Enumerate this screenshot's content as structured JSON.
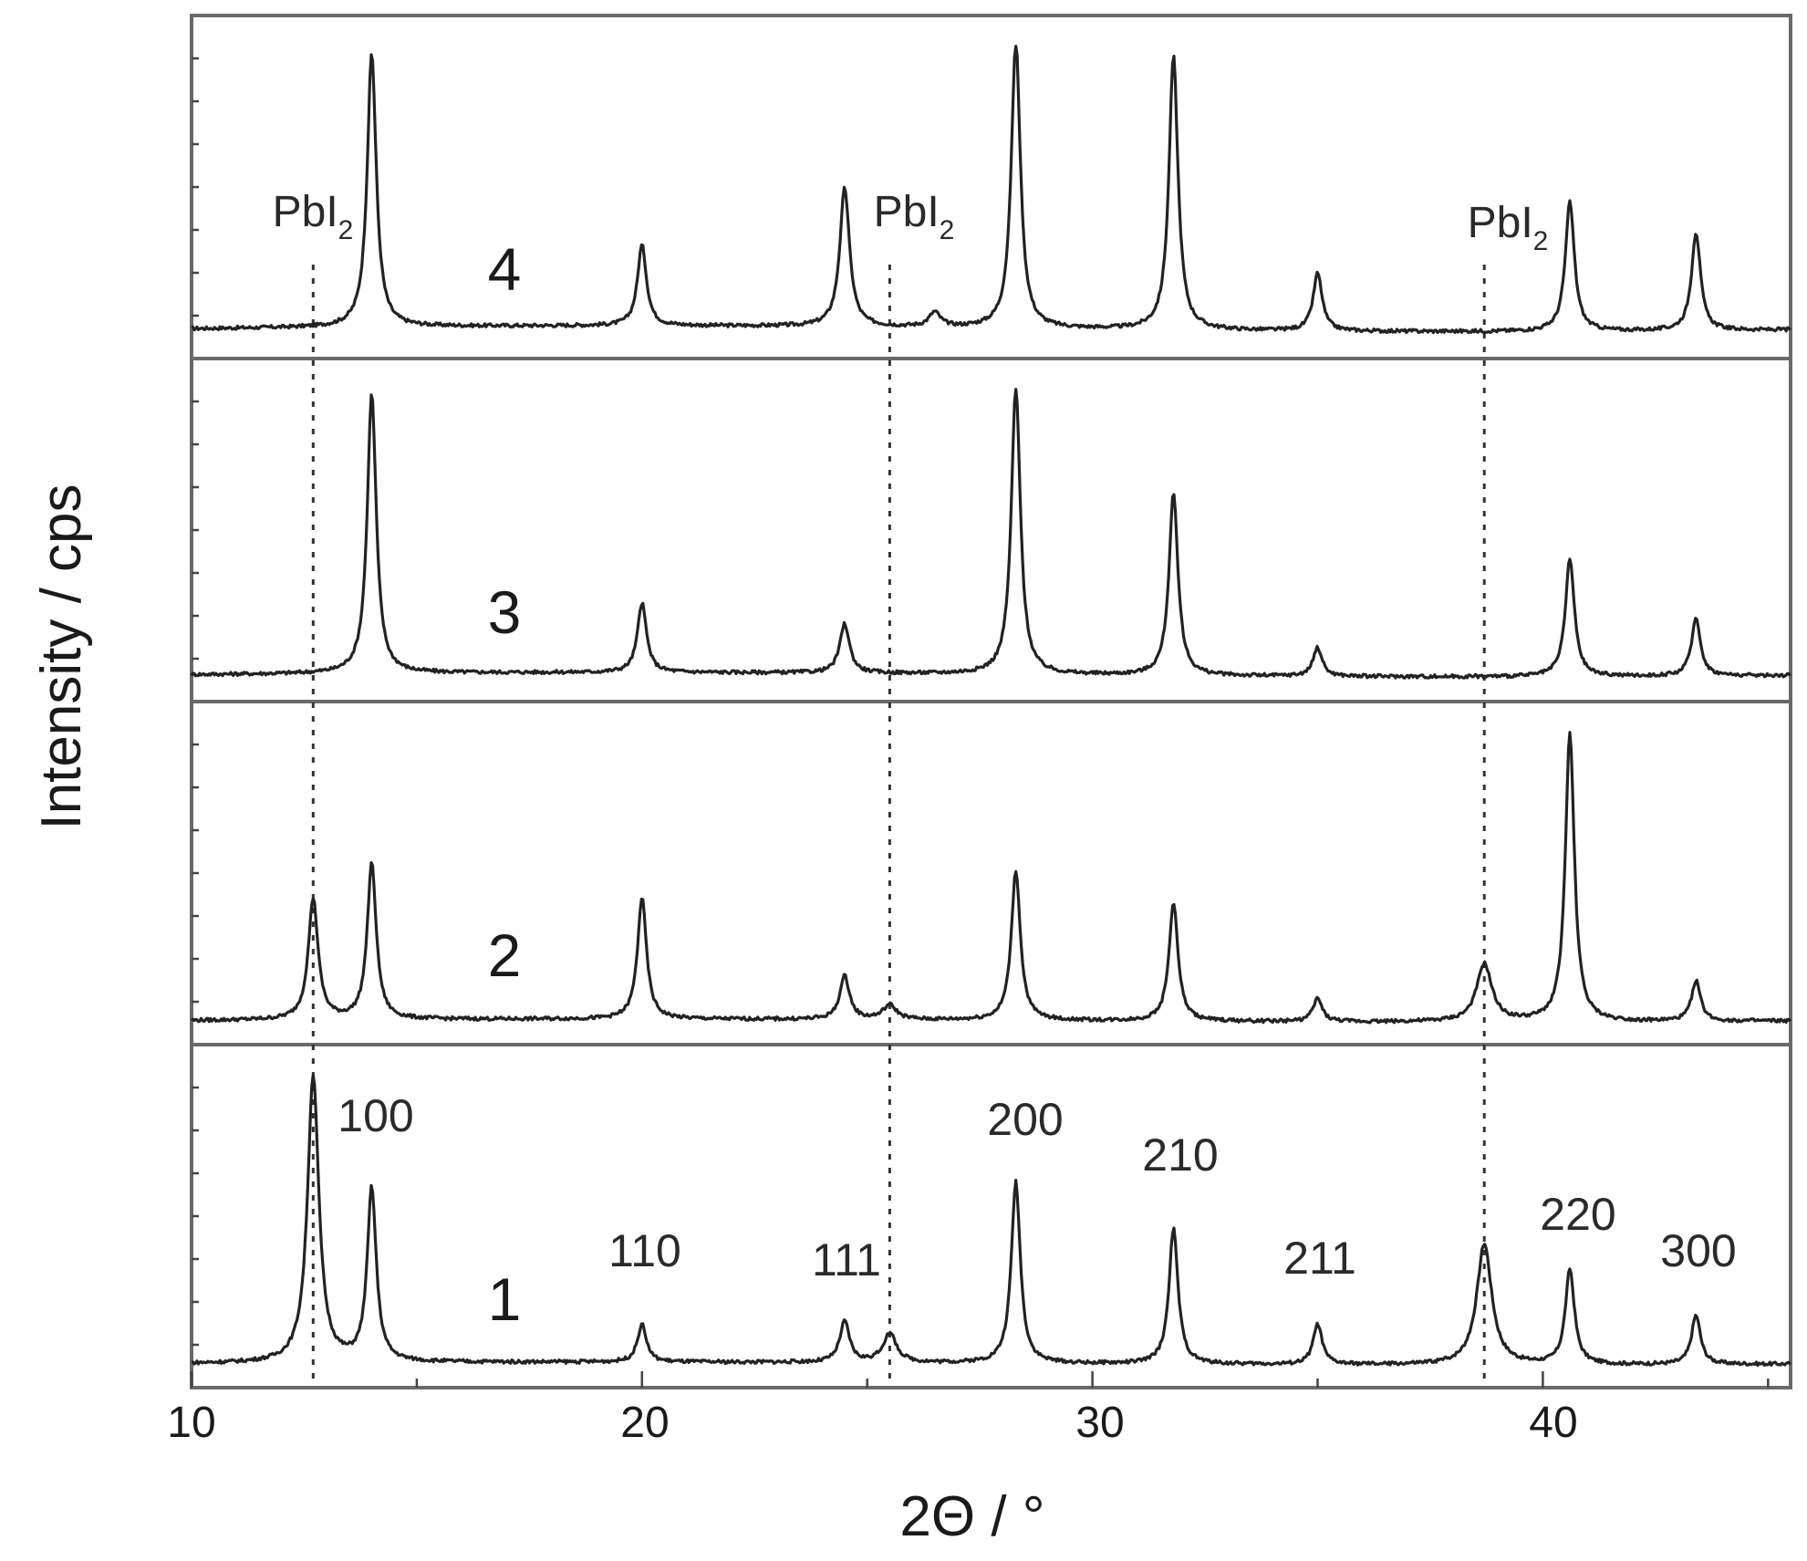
{
  "chart_data": {
    "type": "line",
    "xlabel": "2Θ / °",
    "ylabel": "Intensity / cps",
    "xlim": [
      10,
      45.5
    ],
    "x_ticks": [
      "10",
      "20",
      "30",
      "40"
    ],
    "y_ticks_labeled": false,
    "grid": false,
    "legend": "none",
    "series": [
      {
        "label": "4",
        "baseline": 0.04,
        "peaks": [
          [
            14.0,
            0.95,
            0.12
          ],
          [
            20.0,
            0.28,
            0.12
          ],
          [
            24.5,
            0.48,
            0.13
          ],
          [
            26.5,
            0.05,
            0.15
          ],
          [
            28.3,
            1.0,
            0.12
          ],
          [
            31.8,
            0.95,
            0.12
          ],
          [
            35.0,
            0.2,
            0.12
          ],
          [
            40.6,
            0.45,
            0.12
          ],
          [
            43.4,
            0.34,
            0.12
          ]
        ]
      },
      {
        "label": "3",
        "baseline": 0.03,
        "peaks": [
          [
            14.0,
            0.97,
            0.12
          ],
          [
            20.0,
            0.24,
            0.12
          ],
          [
            24.5,
            0.17,
            0.13
          ],
          [
            28.3,
            1.0,
            0.12
          ],
          [
            31.8,
            0.63,
            0.12
          ],
          [
            35.0,
            0.1,
            0.12
          ],
          [
            40.6,
            0.41,
            0.12
          ],
          [
            43.4,
            0.2,
            0.12
          ]
        ]
      },
      {
        "label": "2",
        "baseline": 0.02,
        "peaks": [
          [
            12.7,
            0.42,
            0.13
          ],
          [
            14.0,
            0.54,
            0.12
          ],
          [
            20.0,
            0.42,
            0.12
          ],
          [
            24.5,
            0.15,
            0.13
          ],
          [
            25.5,
            0.05,
            0.18
          ],
          [
            28.3,
            0.52,
            0.12
          ],
          [
            31.8,
            0.41,
            0.12
          ],
          [
            35.0,
            0.08,
            0.12
          ],
          [
            38.7,
            0.2,
            0.2
          ],
          [
            40.6,
            1.0,
            0.12
          ],
          [
            43.4,
            0.14,
            0.12
          ]
        ]
      },
      {
        "label": "1",
        "baseline": 0.02,
        "peaks": [
          [
            12.7,
            1.0,
            0.15
          ],
          [
            14.0,
            0.6,
            0.12
          ],
          [
            20.0,
            0.13,
            0.12
          ],
          [
            24.5,
            0.14,
            0.13
          ],
          [
            25.5,
            0.1,
            0.18
          ],
          [
            28.3,
            0.63,
            0.12
          ],
          [
            31.8,
            0.47,
            0.12
          ],
          [
            35.0,
            0.14,
            0.12
          ],
          [
            38.7,
            0.42,
            0.2
          ],
          [
            40.6,
            0.33,
            0.12
          ],
          [
            43.4,
            0.17,
            0.12
          ]
        ]
      }
    ],
    "reference_lines": [
      {
        "x": 12.7,
        "label": "PbI",
        "sub": "2"
      },
      {
        "x": 25.5,
        "label": "PbI",
        "sub": "2"
      },
      {
        "x": 38.7,
        "label": "PbI",
        "sub": "2"
      }
    ],
    "peak_labels": [
      {
        "x": 14.0,
        "text": "100"
      },
      {
        "x": 20.0,
        "text": "110"
      },
      {
        "x": 24.5,
        "text": "111"
      },
      {
        "x": 28.3,
        "text": "200"
      },
      {
        "x": 31.8,
        "text": "210"
      },
      {
        "x": 35.0,
        "text": "211"
      },
      {
        "x": 40.6,
        "text": "220"
      },
      {
        "x": 43.4,
        "text": "300"
      }
    ]
  }
}
